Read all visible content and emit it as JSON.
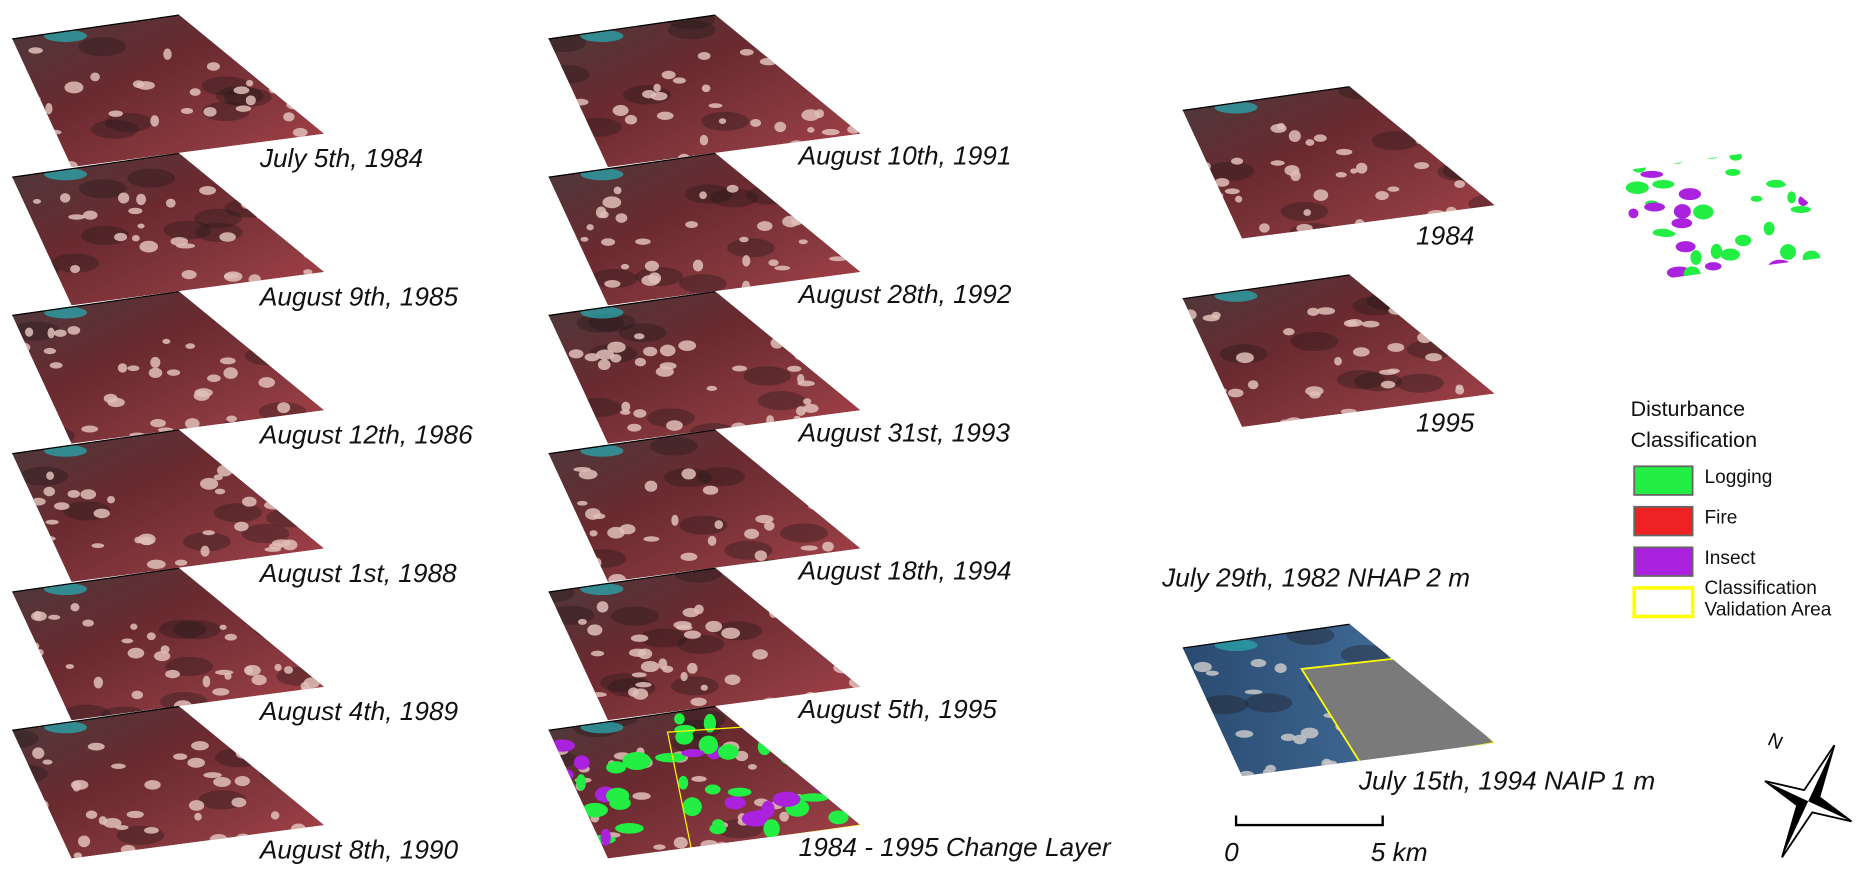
{
  "panels": {
    "column_1": [
      "July 5th, 1984",
      "August 9th, 1985",
      "August 12th, 1986",
      "August 1st, 1988",
      "August 4th, 1989",
      "August 8th, 1990"
    ],
    "column_2": [
      "August 10th, 1991",
      "August 28th, 1992",
      "August 31st, 1993",
      "August 18th, 1994",
      "August 5th, 1995",
      "1984 - 1995 Change Layer"
    ],
    "column_3": [
      "1984",
      "1995"
    ]
  },
  "imagery": {
    "top": "July 29th, 1982 NHAP 2 m",
    "bottom": "July 15th, 1994 NAIP 1 m"
  },
  "scale_bar": {
    "start": "0",
    "end": "5 km"
  },
  "legend": {
    "title": "Disturbance Classification",
    "items": [
      {
        "label": "Logging",
        "color": "#22ee44"
      },
      {
        "label": "Fire",
        "color": "#ee2222"
      },
      {
        "label": "Insect",
        "color": "#aa22dd"
      },
      {
        "label": "Classification Validation Area",
        "color": "#ffff00"
      }
    ]
  },
  "north_arrow": "N"
}
